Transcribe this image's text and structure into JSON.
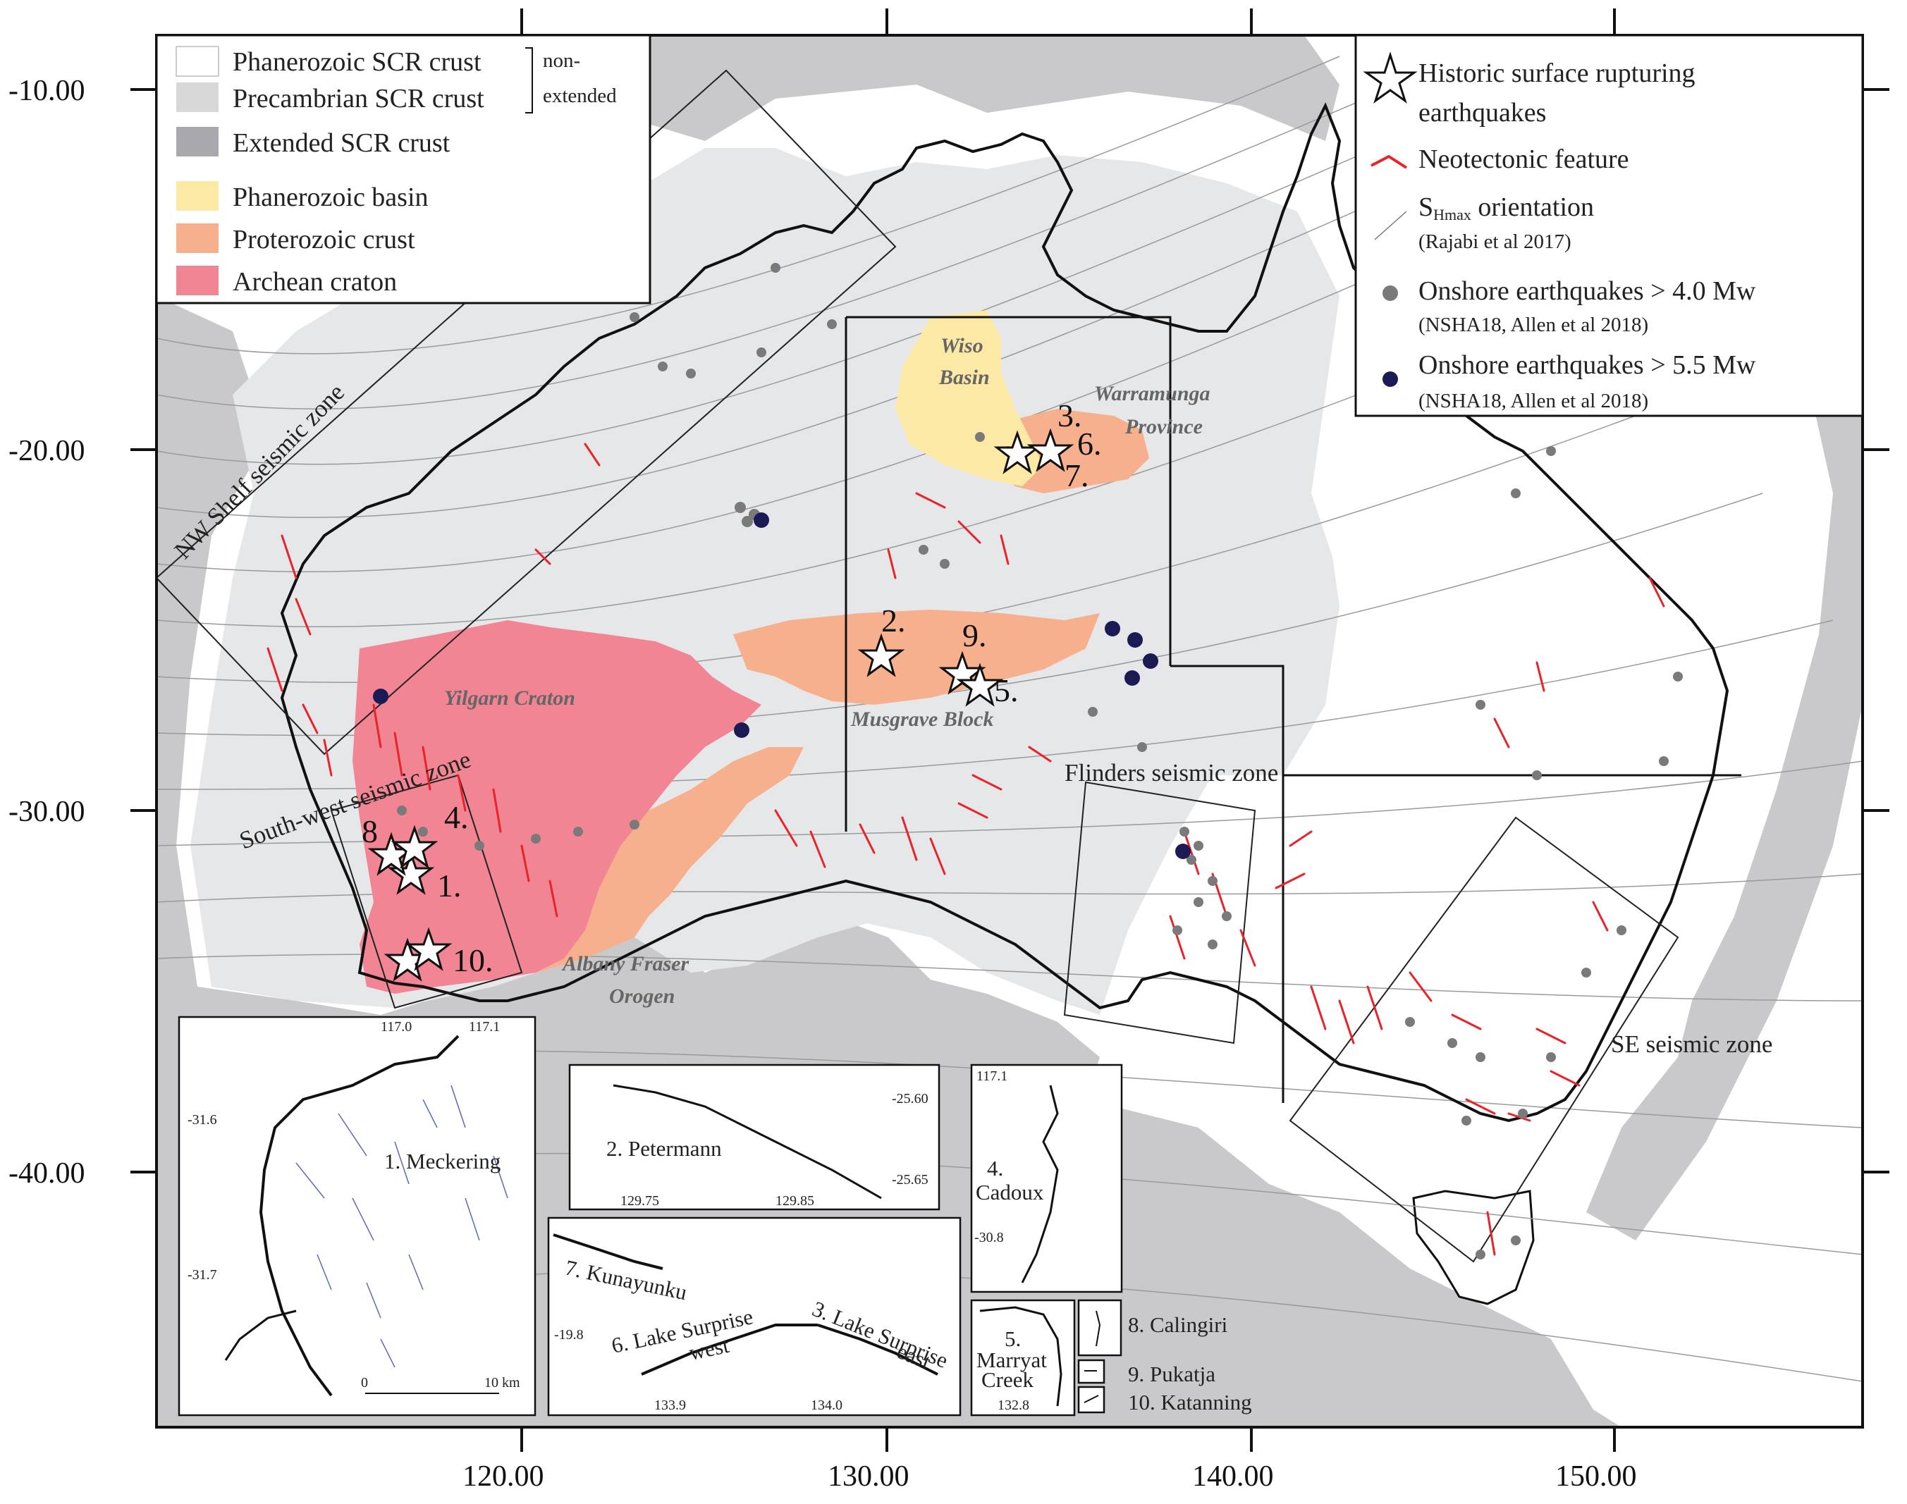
{
  "axes": {
    "x_ticks": [
      "120.00",
      "130.00",
      "140.00",
      "150.00"
    ],
    "y_ticks": [
      "-10.00",
      "-20.00",
      "-30.00",
      "-40.00"
    ]
  },
  "legend_left": {
    "items": [
      {
        "label": "Phanerozoic SCR crust",
        "color": "#ffffff"
      },
      {
        "label": "Precambrian SCR crust",
        "color": "#d8d8d8"
      },
      {
        "label": "Extended SCR crust",
        "color": "#a9a9ad"
      },
      {
        "label": "Phanerozoic basin",
        "color": "#fde9a6"
      },
      {
        "label": "Proterozoic crust",
        "color": "#f7b08d"
      },
      {
        "label": "Archean craton",
        "color": "#f28593"
      }
    ],
    "brace_label_line1": "non-",
    "brace_label_line2": "extended"
  },
  "legend_right": {
    "star_label_line1": "Historic surface rupturing",
    "star_label_line2": "earthquakes",
    "neotectonic_label": "Neotectonic feature",
    "shmax_label_main": "S",
    "shmax_label_sub": "Hmax",
    "shmax_label_rest": " orientation",
    "shmax_ref": "(Rajabi et al 2017)",
    "eq4_label": "Onshore earthquakes > 4.0 Mw",
    "eq4_ref": "(NSHA18, Allen et al 2018)",
    "eq55_label": "Onshore earthquakes > 5.5 Mw",
    "eq55_ref": "(NSHA18, Allen et al 2018)"
  },
  "colors": {
    "ocean_extended": "#c9c9cb",
    "precambrian": "#e6e7e9",
    "phanerozoic": "#ffffff",
    "basin": "#fde9a6",
    "proterozoic": "#f7b08d",
    "archean": "#f28593",
    "neotectonic": "#e8232a",
    "eq_small": "#7a7a7a",
    "eq_large": "#1c1a55"
  },
  "region_labels": {
    "wiso_1": "Wiso",
    "wiso_2": "Basin",
    "warramunga_1": "Warramunga",
    "warramunga_2": "Province",
    "yilgarn": "Yilgarn Craton",
    "musgrave": "Musgrave Block",
    "albany_1": "Albany Fraser",
    "albany_2": "Orogen"
  },
  "zone_labels": {
    "nw_shelf": "NW Shelf seismic zone",
    "south_west": "South-west seismic zone",
    "flinders": "Flinders seismic zone",
    "se": "SE seismic zone"
  },
  "star_numbers": [
    "1.",
    "2.",
    "3.",
    "4.",
    "5.",
    "6.",
    "7.",
    "8",
    "9.",
    "10."
  ],
  "insets": {
    "meckering": {
      "title": "1. Meckering",
      "top_ticks": [
        "117.0",
        "117.1"
      ],
      "lat_ticks": [
        "-31.6",
        "-31.7"
      ],
      "scale_0": "0",
      "scale_10": "10 km"
    },
    "petermann": {
      "title": "2. Petermann",
      "lat_ticks": [
        "-25.60",
        "-25.65"
      ],
      "lon_ticks": [
        "129.75",
        "129.85"
      ]
    },
    "cadoux": {
      "title_line1": "4.",
      "title_line2": "Cadoux",
      "top_tick": "117.1",
      "lat_tick": "-30.8"
    },
    "lake_surprise": {
      "kunayunku": "7. Kunayunku",
      "west_line1": "6. Lake Surprise",
      "west_line2": "west",
      "east_line1": "3. Lake Surprise",
      "east_line2": "east",
      "lat_tick": "-19.8",
      "lon_ticks": [
        "133.9",
        "134.0"
      ]
    },
    "marryat": {
      "line1": "5.",
      "line2": "Marryat",
      "line3": "Creek",
      "tick": "132.8"
    },
    "small_labels": [
      "8. Calingiri",
      "9. Pukatja",
      "10. Katanning"
    ]
  }
}
